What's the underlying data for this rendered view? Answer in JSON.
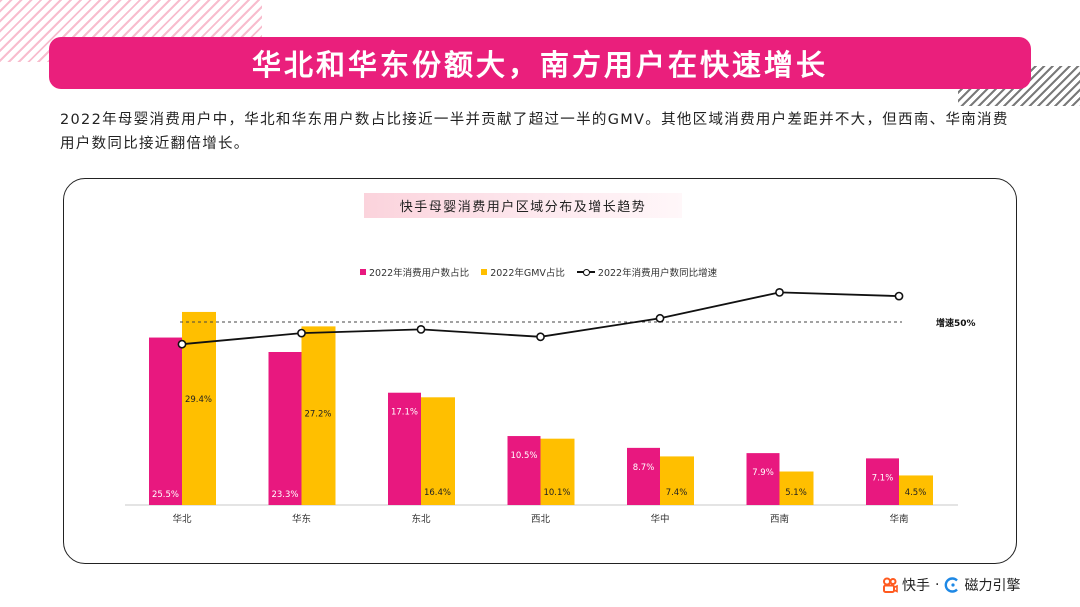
{
  "header": {
    "title": "华北和华东份额大，南方用户在快速增长"
  },
  "intro": {
    "text": "2022年母婴消费用户中，华北和华东用户数占比接近一半并贡献了超过一半的GMV。其他区域消费用户差距并不大，但西南、华南消费用户数同比接近翻倍增长。"
  },
  "colors": {
    "accent": "#ea1f7c",
    "users_bar": "#e8187f",
    "gmv_bar": "#ffbf00",
    "line": "#111111"
  },
  "chart_data": {
    "type": "bar",
    "title": "快手母婴消费用户区域分布及增长趋势",
    "categories": [
      "华北",
      "华东",
      "东北",
      "西北",
      "华中",
      "西南",
      "华南"
    ],
    "series": [
      {
        "name": "2022年消费用户数占比",
        "type": "bar",
        "values": [
          25.5,
          23.3,
          17.1,
          10.5,
          8.7,
          7.9,
          7.1
        ],
        "labels": [
          "25.5%",
          "23.3%",
          "17.1%",
          "10.5%",
          "8.7%",
          "7.9%",
          "7.1%"
        ]
      },
      {
        "name": "2022年GMV占比",
        "type": "bar",
        "values": [
          29.4,
          27.2,
          16.4,
          10.1,
          7.4,
          5.1,
          4.5
        ],
        "labels": [
          "29.4%",
          "27.2%",
          "16.4%",
          "10.1%",
          "7.4%",
          "5.1%",
          "4.5%"
        ]
      },
      {
        "name": "2022年消费用户数同比增速",
        "type": "line",
        "values": [
          44,
          47,
          48,
          46,
          51,
          58,
          57
        ]
      }
    ],
    "reference_line": {
      "value": 50,
      "label": "增速50%"
    },
    "ylim_bar": [
      0,
      30
    ],
    "grid": false,
    "legend_position": "top-center"
  },
  "footer": {
    "brand1": "快手",
    "separator": "·",
    "brand2": "磁力引擎"
  }
}
